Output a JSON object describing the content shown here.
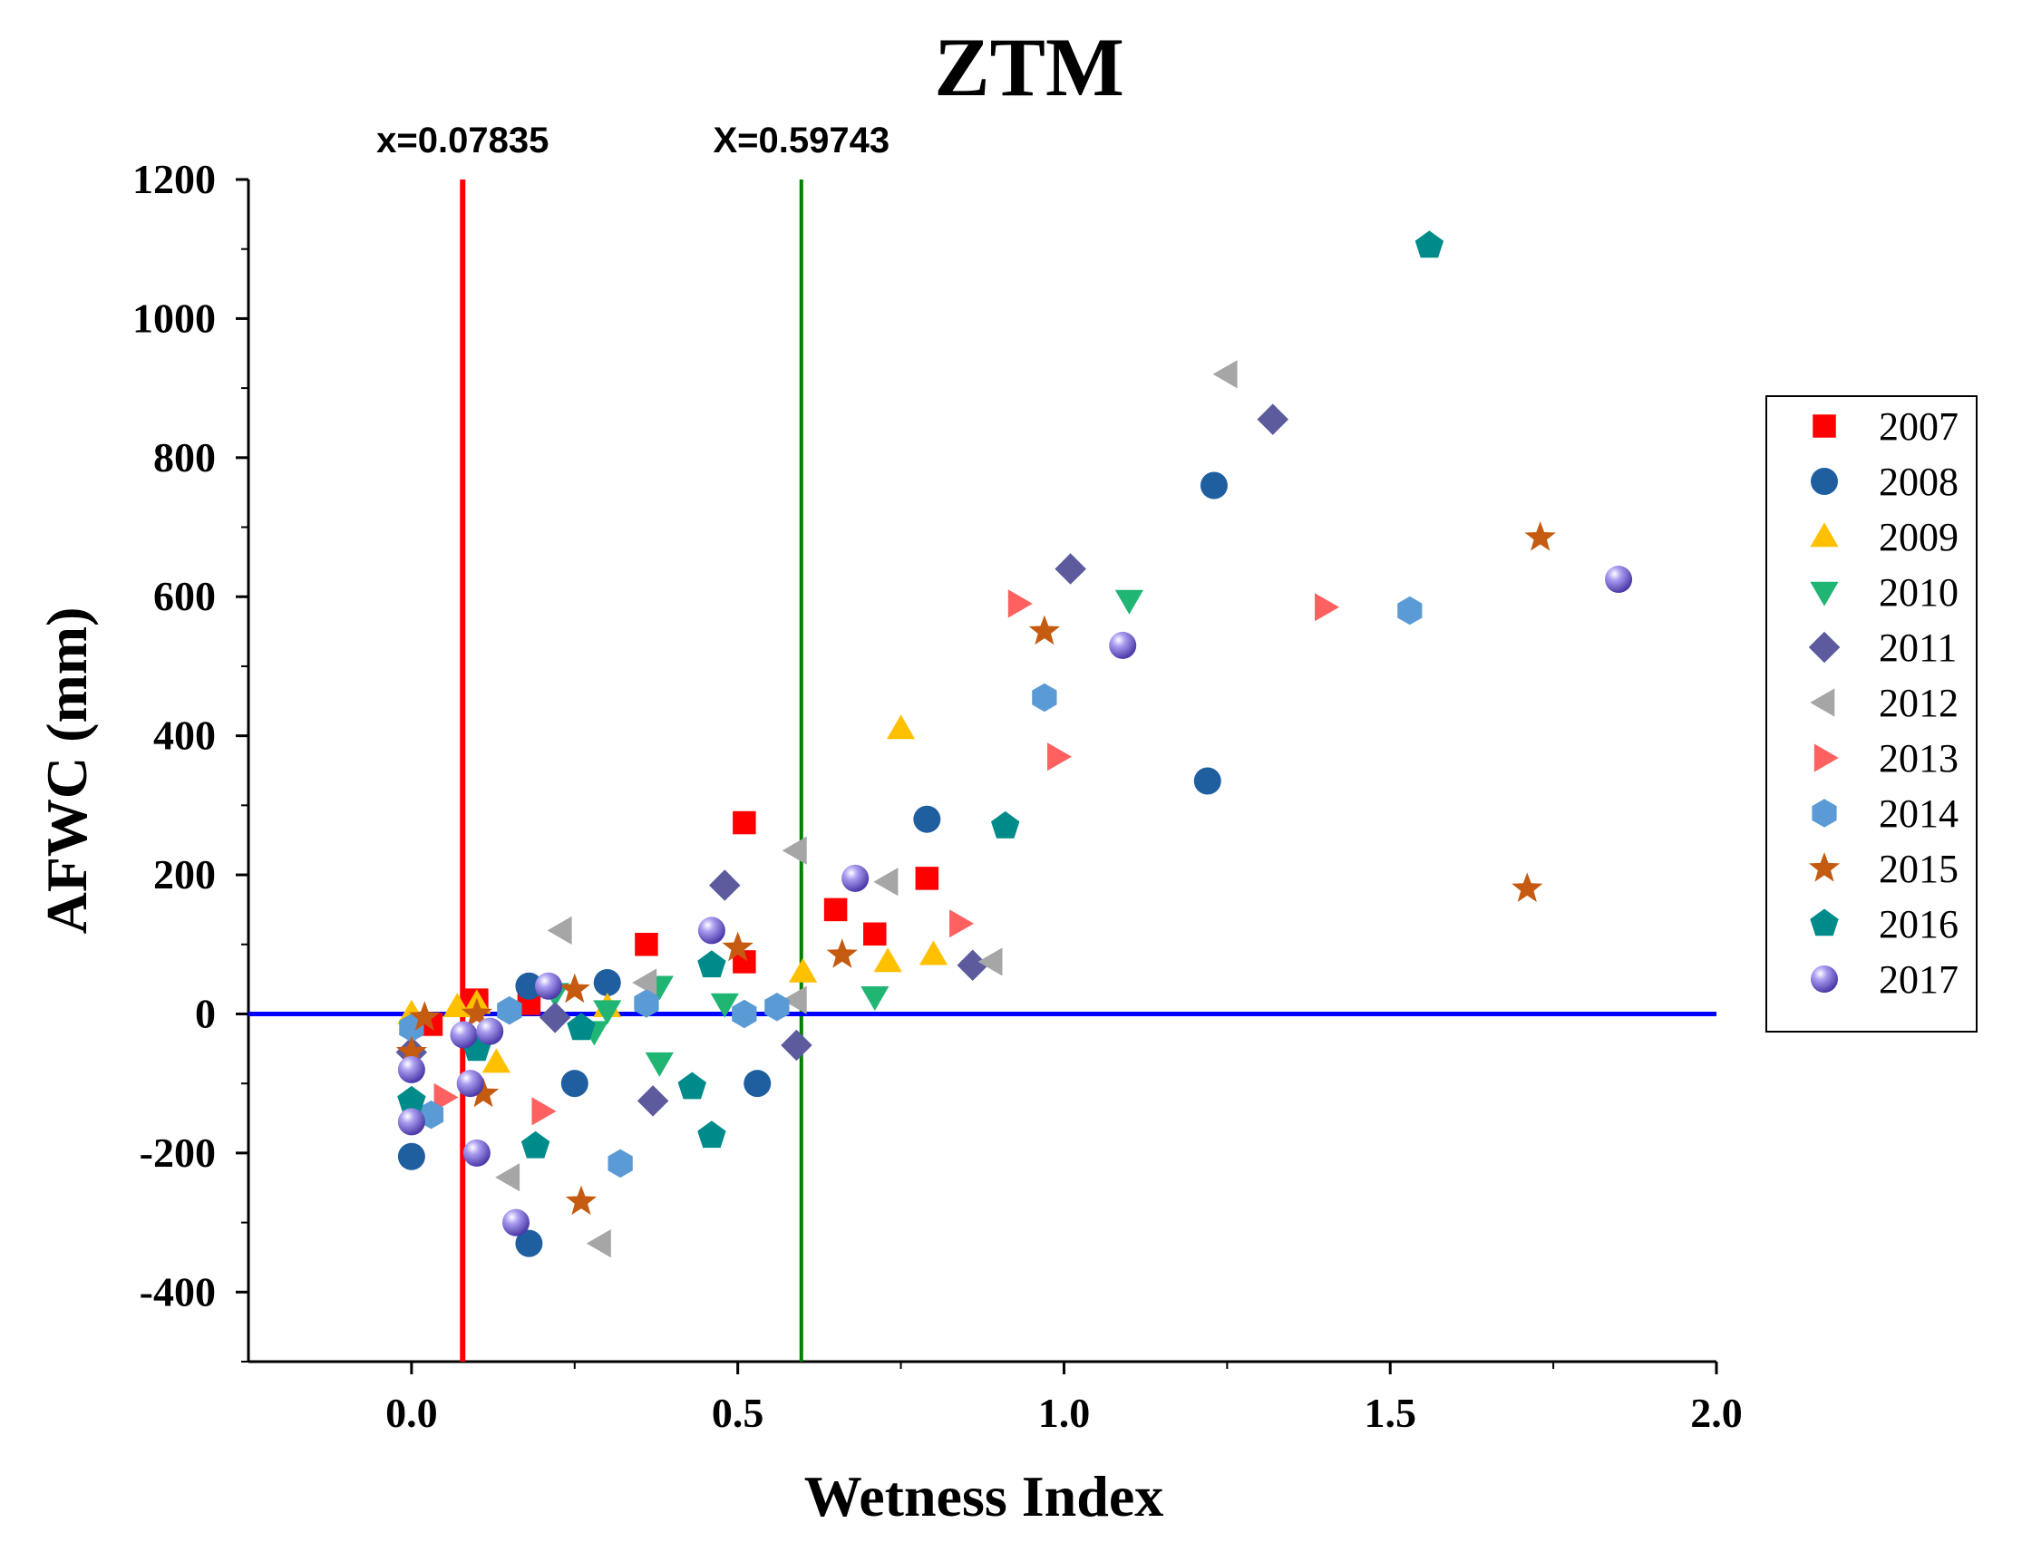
{
  "chart_data": {
    "type": "scatter",
    "title": "ZTM",
    "xlabel": "Wetness Index",
    "ylabel": "AFWC (mm)",
    "xlim": [
      -0.25,
      2.0
    ],
    "ylim": [
      -500,
      1200
    ],
    "x_ticks": [
      0.0,
      0.5,
      1.0,
      1.5,
      2.0
    ],
    "x_tick_labels": [
      "0.0",
      "0.5",
      "1.0",
      "1.5",
      "2.0"
    ],
    "y_ticks": [
      -400,
      -200,
      0,
      200,
      400,
      600,
      800,
      1000,
      1200
    ],
    "y_tick_labels": [
      "-400",
      "-200",
      "0",
      "200",
      "400",
      "600",
      "800",
      "1000",
      "1200"
    ],
    "legend_position": "right",
    "reference_lines": [
      {
        "orientation": "vertical",
        "x": 0.07835,
        "label": "x=0.07835",
        "color": "#ff0000"
      },
      {
        "orientation": "vertical",
        "x": 0.59743,
        "label": "X=0.59743",
        "color": "#008000"
      },
      {
        "orientation": "horizontal",
        "y": 0,
        "label": "",
        "color": "#0000ff"
      }
    ],
    "series": [
      {
        "name": "2007",
        "marker": "square",
        "color": "#ff0000",
        "points": [
          [
            0.03,
            -15
          ],
          [
            0.1,
            20
          ],
          [
            0.18,
            15
          ],
          [
            0.36,
            100
          ],
          [
            0.51,
            75
          ],
          [
            0.51,
            275
          ],
          [
            0.65,
            150
          ],
          [
            0.71,
            115
          ],
          [
            0.79,
            195
          ]
        ]
      },
      {
        "name": "2008",
        "marker": "circle",
        "color": "#1f5fa0",
        "points": [
          [
            0.0,
            -205
          ],
          [
            0.18,
            40
          ],
          [
            0.18,
            -330
          ],
          [
            0.25,
            -100
          ],
          [
            0.3,
            45
          ],
          [
            0.53,
            -100
          ],
          [
            0.79,
            280
          ],
          [
            1.23,
            760
          ],
          [
            1.22,
            335
          ]
        ]
      },
      {
        "name": "2009",
        "marker": "triangle-up",
        "color": "#ffc000",
        "points": [
          [
            0.0,
            0
          ],
          [
            0.07,
            10
          ],
          [
            0.1,
            15
          ],
          [
            0.13,
            -70
          ],
          [
            0.3,
            10
          ],
          [
            0.6,
            60
          ],
          [
            0.73,
            75
          ],
          [
            0.75,
            410
          ],
          [
            0.8,
            85
          ]
        ]
      },
      {
        "name": "2010",
        "marker": "triangle-down",
        "color": "#21b573",
        "points": [
          [
            0.1,
            -40
          ],
          [
            0.22,
            30
          ],
          [
            0.28,
            -25
          ],
          [
            0.3,
            5
          ],
          [
            0.38,
            40
          ],
          [
            0.38,
            -70
          ],
          [
            0.48,
            15
          ],
          [
            0.71,
            25
          ],
          [
            1.1,
            595
          ]
        ]
      },
      {
        "name": "2011",
        "marker": "diamond",
        "color": "#5b5b9e",
        "points": [
          [
            0.0,
            -55
          ],
          [
            0.22,
            -5
          ],
          [
            0.37,
            -125
          ],
          [
            0.48,
            185
          ],
          [
            0.59,
            -45
          ],
          [
            0.86,
            70
          ],
          [
            1.01,
            640
          ],
          [
            1.32,
            855
          ]
        ]
      },
      {
        "name": "2012",
        "marker": "triangle-left",
        "color": "#a6a6a6",
        "points": [
          [
            0.15,
            -235
          ],
          [
            0.23,
            120
          ],
          [
            0.29,
            -330
          ],
          [
            0.36,
            45
          ],
          [
            0.59,
            235
          ],
          [
            0.59,
            20
          ],
          [
            0.73,
            190
          ],
          [
            0.89,
            75
          ],
          [
            1.25,
            920
          ]
        ]
      },
      {
        "name": "2013",
        "marker": "triangle-right",
        "color": "#ff6060",
        "points": [
          [
            0.05,
            -120
          ],
          [
            0.2,
            -140
          ],
          [
            0.84,
            130
          ],
          [
            0.93,
            590
          ],
          [
            0.99,
            370
          ],
          [
            1.4,
            585
          ]
        ]
      },
      {
        "name": "2014",
        "marker": "hexagon",
        "color": "#5b9bd5",
        "points": [
          [
            0.0,
            -20
          ],
          [
            0.03,
            -145
          ],
          [
            0.15,
            5
          ],
          [
            0.32,
            -215
          ],
          [
            0.36,
            15
          ],
          [
            0.51,
            0
          ],
          [
            0.56,
            10
          ],
          [
            0.97,
            455
          ],
          [
            1.53,
            580
          ]
        ]
      },
      {
        "name": "2015",
        "marker": "star",
        "color": "#c55a11",
        "points": [
          [
            0.0,
            -55
          ],
          [
            0.02,
            -5
          ],
          [
            0.1,
            0
          ],
          [
            0.11,
            -115
          ],
          [
            0.25,
            35
          ],
          [
            0.26,
            -270
          ],
          [
            0.5,
            95
          ],
          [
            0.66,
            85
          ],
          [
            0.97,
            550
          ],
          [
            1.71,
            180
          ],
          [
            1.73,
            685
          ]
        ]
      },
      {
        "name": "2016",
        "marker": "pentagon",
        "color": "#008b8b",
        "points": [
          [
            0.0,
            -125
          ],
          [
            0.1,
            -50
          ],
          [
            0.19,
            -190
          ],
          [
            0.26,
            -20
          ],
          [
            0.43,
            -105
          ],
          [
            0.46,
            70
          ],
          [
            0.46,
            -175
          ],
          [
            0.91,
            270
          ],
          [
            1.56,
            1105
          ]
        ]
      },
      {
        "name": "2017",
        "marker": "sphere",
        "color": "#7b6cd6",
        "points": [
          [
            0.0,
            -155
          ],
          [
            0.0,
            -80
          ],
          [
            0.08,
            -30
          ],
          [
            0.09,
            -100
          ],
          [
            0.1,
            -200
          ],
          [
            0.12,
            -25
          ],
          [
            0.16,
            -300
          ],
          [
            0.21,
            40
          ],
          [
            0.46,
            120
          ],
          [
            0.68,
            195
          ],
          [
            1.09,
            530
          ],
          [
            1.85,
            625
          ]
        ]
      }
    ]
  }
}
